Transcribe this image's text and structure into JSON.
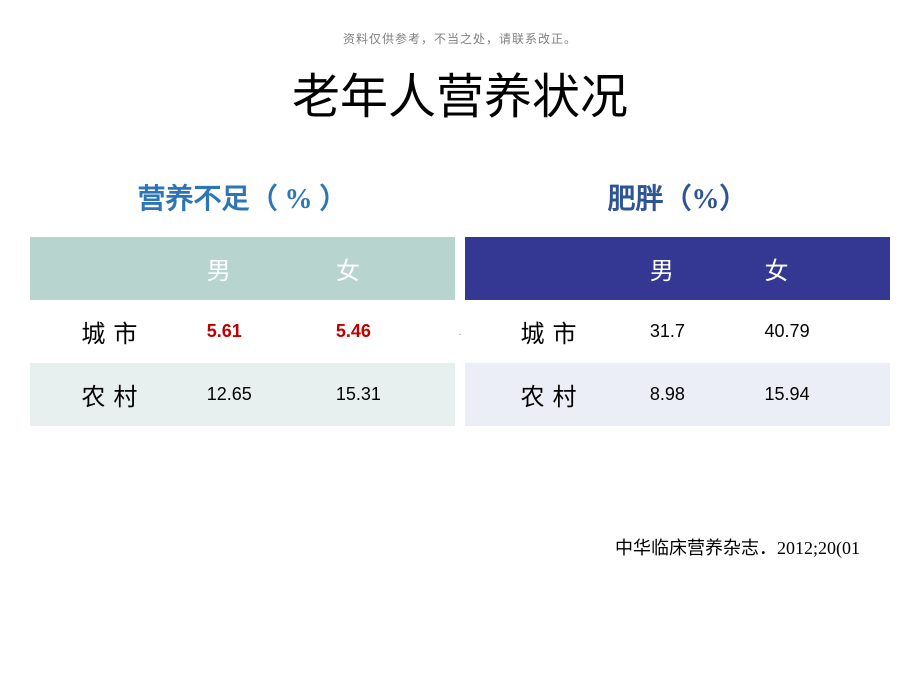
{
  "header_note": "资料仅供参考，不当之处，请联系改正。",
  "main_title": "老年人营养状况",
  "left_table": {
    "title": "营养不足（ % ）",
    "title_color": "#2e75b6",
    "header_bg": "#b8d4cf",
    "header_text_color": "#ffffff",
    "alt_row_bg": "#e8f0ef",
    "columns": [
      "",
      "男",
      "女"
    ],
    "rows": [
      {
        "label": "城市",
        "male": "5.61",
        "female": "5.46",
        "highlight": true
      },
      {
        "label": "农村",
        "male": "12.65",
        "female": "15.31",
        "highlight": false
      }
    ],
    "highlight_color": "#c00000"
  },
  "right_table": {
    "title": "肥胖（%）",
    "title_color": "#2e5496",
    "header_bg": "#353892",
    "header_text_color": "#ffffff",
    "alt_row_bg": "#eceef7",
    "columns": [
      "",
      "男",
      "女"
    ],
    "rows": [
      {
        "label": "城市",
        "male": "31.7",
        "female": "40.79"
      },
      {
        "label": "农村",
        "male": "8.98",
        "female": "15.94"
      }
    ]
  },
  "citation": "中华临床营养杂志．2012;20(01",
  "footer_marker": "·"
}
